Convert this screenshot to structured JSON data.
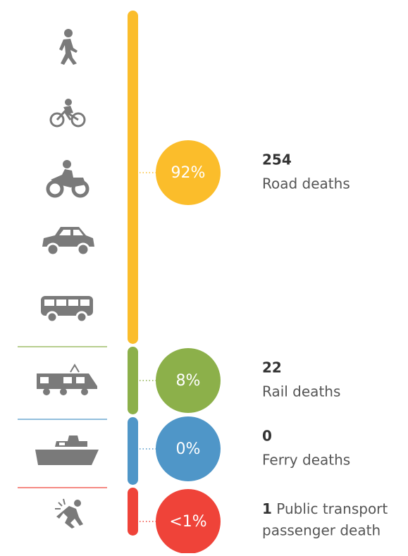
{
  "sections": [
    {
      "percent": "92%",
      "count": "254",
      "label": "Road deaths",
      "color": "#fbbd2b"
    },
    {
      "percent": "8%",
      "count": "22",
      "label": "Rail deaths",
      "color": "#8cb04a"
    },
    {
      "percent": "0%",
      "count": "0",
      "label": "Ferry deaths",
      "color": "#4f96c8"
    },
    {
      "percent": "<1%",
      "count": "1",
      "label_lines": [
        "Public transport",
        "passenger death"
      ],
      "color": "#ef4339"
    }
  ]
}
